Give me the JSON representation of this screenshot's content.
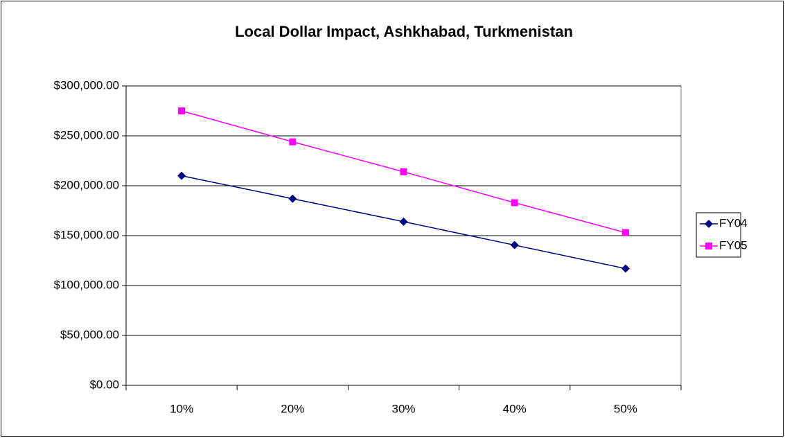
{
  "chart_data": {
    "type": "line",
    "title": "Local Dollar Impact, Ashkhabad, Turkmenistan",
    "categories": [
      "10%",
      "20%",
      "30%",
      "40%",
      "50%"
    ],
    "series": [
      {
        "name": "FY04",
        "color": "#000080",
        "marker": "diamond",
        "values": [
          210000,
          187000,
          164000,
          140500,
          117000
        ]
      },
      {
        "name": "FY05",
        "color": "#ff00ff",
        "marker": "square",
        "values": [
          275000,
          244000,
          214000,
          183000,
          153000
        ]
      }
    ],
    "ylim": [
      0,
      300000
    ],
    "yticks": [
      {
        "value": 0,
        "label": "$0.00"
      },
      {
        "value": 50000,
        "label": "$50,000.00"
      },
      {
        "value": 100000,
        "label": "$100,000.00"
      },
      {
        "value": 150000,
        "label": "$150,000.00"
      },
      {
        "value": 200000,
        "label": "$200,000.00"
      },
      {
        "value": 250000,
        "label": "$250,000.00"
      },
      {
        "value": 300000,
        "label": "$300,000.00"
      }
    ],
    "grid": true,
    "legend": "right"
  }
}
